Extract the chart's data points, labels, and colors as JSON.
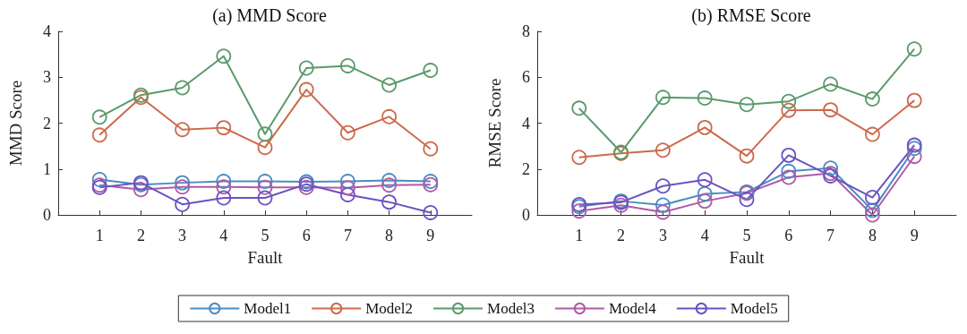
{
  "chart_data": [
    {
      "type": "line",
      "title": "(a) MMD Score",
      "xlabel": "Fault",
      "ylabel": "MMD Score",
      "x": [
        1,
        2,
        3,
        4,
        5,
        6,
        7,
        8,
        9
      ],
      "xlim": [
        0,
        10
      ],
      "xticks": [
        1,
        2,
        3,
        4,
        5,
        6,
        7,
        8,
        9
      ],
      "ylim": [
        0,
        4
      ],
      "yticks": [
        0,
        1,
        2,
        3,
        4
      ],
      "grid": false,
      "legend": false,
      "marker": "circle",
      "line_style": "solid",
      "series": [
        {
          "color": "#4a8cc2",
          "values": [
            0.77,
            0.66,
            0.7,
            0.73,
            0.73,
            0.72,
            0.73,
            0.75,
            0.73
          ]
        },
        {
          "color": "#cc6a4c",
          "values": [
            1.74,
            2.56,
            1.86,
            1.9,
            1.47,
            2.73,
            1.79,
            2.14,
            1.44
          ]
        },
        {
          "color": "#5a9a6a",
          "values": [
            2.13,
            2.61,
            2.77,
            3.46,
            1.76,
            3.2,
            3.25,
            2.83,
            3.15
          ]
        },
        {
          "color": "#b05aa8",
          "values": [
            0.65,
            0.55,
            0.61,
            0.61,
            0.6,
            0.6,
            0.59,
            0.65,
            0.66
          ]
        },
        {
          "color": "#6a52c2",
          "values": [
            0.6,
            0.7,
            0.23,
            0.37,
            0.37,
            0.67,
            0.44,
            0.28,
            0.05
          ]
        }
      ]
    },
    {
      "type": "line",
      "title": "(b) RMSE Score",
      "xlabel": "Fault",
      "ylabel": "RMSE Score",
      "x": [
        1,
        2,
        3,
        4,
        5,
        6,
        7,
        8,
        9
      ],
      "xlim": [
        0,
        10
      ],
      "xticks": [
        1,
        2,
        3,
        4,
        5,
        6,
        7,
        8,
        9
      ],
      "ylim": [
        0,
        8
      ],
      "yticks": [
        0,
        2,
        4,
        6,
        8
      ],
      "grid": false,
      "legend": "bottom",
      "marker": "circle",
      "line_style": "solid",
      "series": [
        {
          "name": "Model1",
          "color": "#4a8cc2",
          "values": [
            0.36,
            0.6,
            0.43,
            0.92,
            1.0,
            1.9,
            2.04,
            0.2,
            2.9
          ]
        },
        {
          "name": "Model2",
          "color": "#cc6a4c",
          "values": [
            2.51,
            2.68,
            2.82,
            3.81,
            2.57,
            4.56,
            4.58,
            3.51,
            4.99
          ]
        },
        {
          "name": "Model3",
          "color": "#5a9a6a",
          "values": [
            4.65,
            2.73,
            5.12,
            5.09,
            4.81,
            4.95,
            5.7,
            5.05,
            7.23
          ]
        },
        {
          "name": "Model4",
          "color": "#b05aa8",
          "values": [
            0.17,
            0.42,
            0.12,
            0.6,
            0.95,
            1.64,
            1.81,
            0.0,
            2.55
          ]
        },
        {
          "name": "Model5",
          "color": "#6a52c2",
          "values": [
            0.45,
            0.55,
            1.26,
            1.53,
            0.67,
            2.6,
            1.7,
            0.76,
            3.04
          ]
        }
      ]
    }
  ]
}
